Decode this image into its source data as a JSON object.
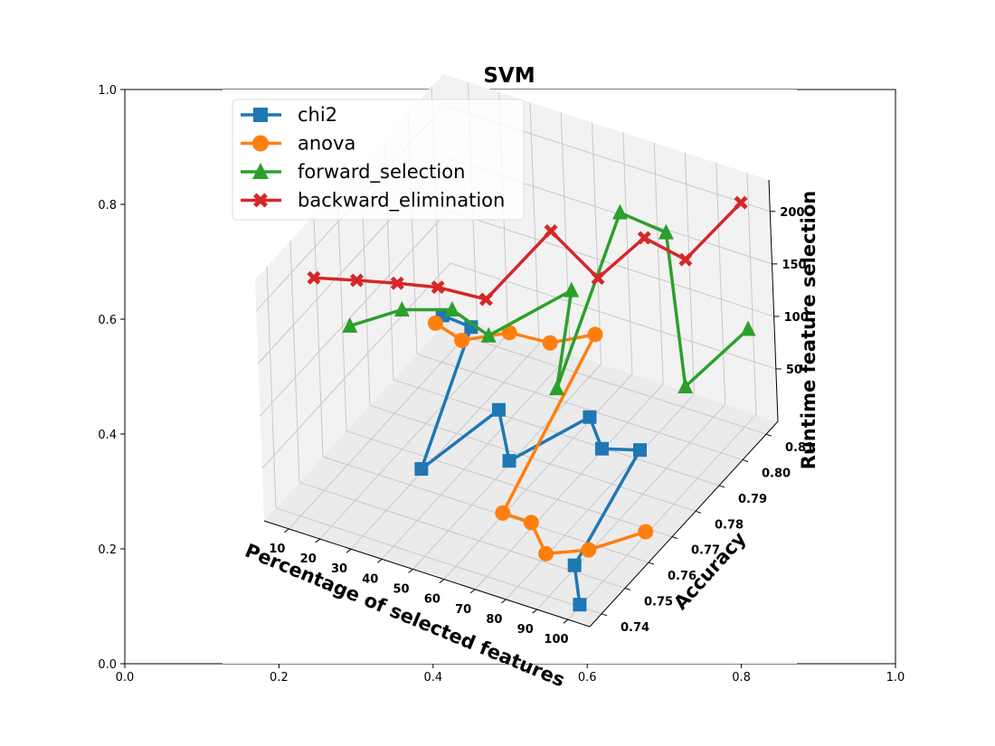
{
  "chart_data": {
    "type": "line",
    "title": "SVM",
    "xlabel": "Percentage of selected features",
    "ylabel": "Accuracy",
    "zlabel": "Runtime feature selection",
    "xticks": [
      "10",
      "20",
      "30",
      "40",
      "50",
      "60",
      "70",
      "80",
      "90",
      "100"
    ],
    "yticks": [
      "0.74",
      "0.75",
      "0.76",
      "0.77",
      "0.78",
      "0.79",
      "0.80",
      "0.81"
    ],
    "zticks": [
      "50",
      "100",
      "150",
      "200"
    ],
    "xlim": [
      2,
      107
    ],
    "ylim": [
      0.735,
      0.815
    ],
    "zlim": [
      0,
      230
    ],
    "legend_position": "top-left",
    "grid": true,
    "frame": {
      "xticks": [
        "0.0",
        "0.2",
        "0.4",
        "0.6",
        "0.8",
        "1.0"
      ],
      "yticks": [
        "0.0",
        "0.2",
        "0.4",
        "0.6",
        "0.8",
        "1.0"
      ]
    },
    "series": [
      {
        "name": "chi2",
        "color": "#1f77b4",
        "marker": "square",
        "points": [
          [
            10,
            0.801,
            42
          ],
          [
            20,
            0.8,
            43
          ],
          [
            30,
            0.765,
            3
          ],
          [
            40,
            0.785,
            20
          ],
          [
            50,
            0.776,
            3
          ],
          [
            60,
            0.797,
            3
          ],
          [
            70,
            0.789,
            2
          ],
          [
            80,
            0.792,
            3
          ],
          [
            90,
            0.751,
            3
          ],
          [
            100,
            0.74,
            2
          ]
        ]
      },
      {
        "name": "anova",
        "color": "#ff7f0e",
        "marker": "circle",
        "points": [
          [
            10,
            0.798,
            42
          ],
          [
            20,
            0.796,
            40
          ],
          [
            30,
            0.803,
            40
          ],
          [
            40,
            0.807,
            30
          ],
          [
            50,
            0.813,
            33
          ],
          [
            60,
            0.76,
            2
          ],
          [
            70,
            0.759,
            5
          ],
          [
            80,
            0.752,
            2
          ],
          [
            90,
            0.757,
            3
          ],
          [
            100,
            0.768,
            3
          ]
        ]
      },
      {
        "name": "forward_selection",
        "color": "#2ca02c",
        "marker": "triangle",
        "points": [
          [
            10,
            0.763,
            125
          ],
          [
            20,
            0.772,
            128
          ],
          [
            30,
            0.78,
            118
          ],
          [
            40,
            0.782,
            98
          ],
          [
            50,
            0.804,
            97
          ],
          [
            60,
            0.784,
            62
          ],
          [
            70,
            0.8,
            200
          ],
          [
            80,
            0.806,
            176
          ],
          [
            90,
            0.799,
            56
          ],
          [
            100,
            0.813,
            86
          ]
        ]
      },
      {
        "name": "backward_elimination",
        "color": "#d62728",
        "marker": "x",
        "points": [
          [
            10,
            0.749,
            205
          ],
          [
            20,
            0.754,
            200
          ],
          [
            30,
            0.758,
            197
          ],
          [
            40,
            0.762,
            193
          ],
          [
            50,
            0.769,
            174
          ],
          [
            60,
            0.784,
            212
          ],
          [
            70,
            0.79,
            162
          ],
          [
            80,
            0.797,
            193
          ],
          [
            90,
            0.801,
            172
          ],
          [
            100,
            0.812,
            209
          ]
        ]
      }
    ]
  }
}
